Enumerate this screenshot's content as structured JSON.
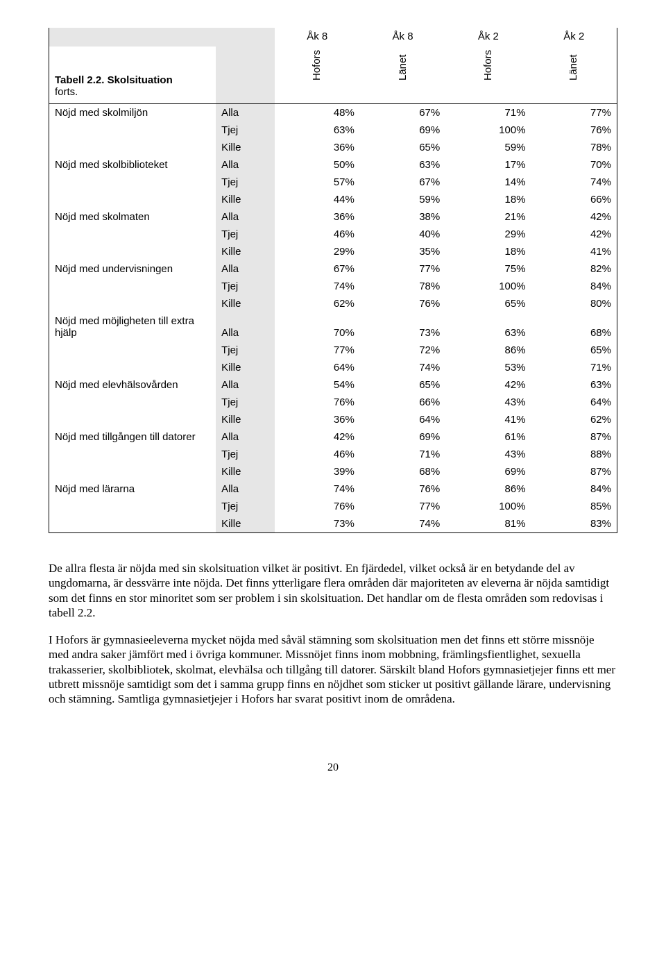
{
  "table": {
    "title": "Tabell 2.2. Skolsituation",
    "subtitle": "forts.",
    "col_headers_top": [
      "Åk 8",
      "Åk 8",
      "Åk 2",
      "Åk 2"
    ],
    "col_headers_sub": [
      "Hofors",
      "Länet",
      "Hofors",
      "Länet"
    ],
    "sections": [
      {
        "label": "Nöjd med skolmiljön",
        "rows": [
          {
            "g": "Alla",
            "v": [
              "48%",
              "67%",
              "71%",
              "77%"
            ]
          },
          {
            "g": "Tjej",
            "v": [
              "63%",
              "69%",
              "100%",
              "76%"
            ]
          },
          {
            "g": "Kille",
            "v": [
              "36%",
              "65%",
              "59%",
              "78%"
            ]
          }
        ]
      },
      {
        "label": "Nöjd med skolbiblioteket",
        "rows": [
          {
            "g": "Alla",
            "v": [
              "50%",
              "63%",
              "17%",
              "70%"
            ]
          },
          {
            "g": "Tjej",
            "v": [
              "57%",
              "67%",
              "14%",
              "74%"
            ]
          },
          {
            "g": "Kille",
            "v": [
              "44%",
              "59%",
              "18%",
              "66%"
            ]
          }
        ]
      },
      {
        "label": "Nöjd med skolmaten",
        "rows": [
          {
            "g": "Alla",
            "v": [
              "36%",
              "38%",
              "21%",
              "42%"
            ]
          },
          {
            "g": "Tjej",
            "v": [
              "46%",
              "40%",
              "29%",
              "42%"
            ]
          },
          {
            "g": "Kille",
            "v": [
              "29%",
              "35%",
              "18%",
              "41%"
            ]
          }
        ]
      },
      {
        "label": "Nöjd med undervisningen",
        "rows": [
          {
            "g": "Alla",
            "v": [
              "67%",
              "77%",
              "75%",
              "82%"
            ]
          },
          {
            "g": "Tjej",
            "v": [
              "74%",
              "78%",
              "100%",
              "84%"
            ]
          },
          {
            "g": "Kille",
            "v": [
              "62%",
              "76%",
              "65%",
              "80%"
            ]
          }
        ]
      },
      {
        "label": "Nöjd med möjligheten till extra hjälp",
        "rows": [
          {
            "g": "Alla",
            "v": [
              "70%",
              "73%",
              "63%",
              "68%"
            ]
          },
          {
            "g": "Tjej",
            "v": [
              "77%",
              "72%",
              "86%",
              "65%"
            ]
          },
          {
            "g": "Kille",
            "v": [
              "64%",
              "74%",
              "53%",
              "71%"
            ]
          }
        ]
      },
      {
        "label": "Nöjd med elevhälsovården",
        "rows": [
          {
            "g": "Alla",
            "v": [
              "54%",
              "65%",
              "42%",
              "63%"
            ]
          },
          {
            "g": "Tjej",
            "v": [
              "76%",
              "66%",
              "43%",
              "64%"
            ]
          },
          {
            "g": "Kille",
            "v": [
              "36%",
              "64%",
              "41%",
              "62%"
            ]
          }
        ]
      },
      {
        "label": "Nöjd med tillgången till datorer",
        "rows": [
          {
            "g": "Alla",
            "v": [
              "42%",
              "69%",
              "61%",
              "87%"
            ]
          },
          {
            "g": "Tjej",
            "v": [
              "46%",
              "71%",
              "43%",
              "88%"
            ]
          },
          {
            "g": "Kille",
            "v": [
              "39%",
              "68%",
              "69%",
              "87%"
            ]
          }
        ]
      },
      {
        "label": "Nöjd med lärarna",
        "rows": [
          {
            "g": "Alla",
            "v": [
              "74%",
              "76%",
              "86%",
              "84%"
            ]
          },
          {
            "g": "Tjej",
            "v": [
              "76%",
              "77%",
              "100%",
              "85%"
            ]
          },
          {
            "g": "Kille",
            "v": [
              "73%",
              "74%",
              "81%",
              "83%"
            ]
          }
        ]
      }
    ]
  },
  "paragraphs": [
    "De allra flesta är nöjda med sin skolsituation vilket är positivt. En fjärdedel, vilket också är en betydande del av ungdomarna, är dessvärre inte nöjda. Det finns ytterligare flera områden där majoriteten av eleverna är nöjda samtidigt som det finns en stor minoritet som ser problem i sin skolsituation. Det handlar om de flesta områden som redovisas i tabell 2.2.",
    "I Hofors är gymnasieeleverna mycket nöjda med såväl stämning som skolsituation men det finns ett större missnöje med andra saker jämfört med i övriga kommuner. Missnöjet finns inom mobbning, främlingsfientlighet, sexuella trakasserier, skolbibliotek, skolmat, elevhälsa och tillgång till datorer. Särskilt bland Hofors gymnasietjejer finns ett mer utbrett missnöje samtidigt som det i samma grupp finns en nöjdhet som sticker ut positivt gällande lärare, undervisning och stämning. Samtliga gymnasietjejer i Hofors har svarat positivt inom de områdena."
  ],
  "page_number": "20"
}
